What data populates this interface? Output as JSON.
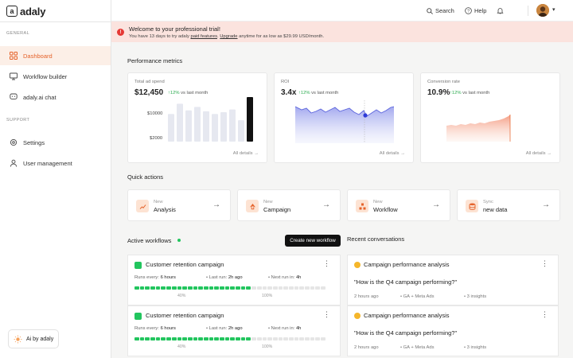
{
  "app": {
    "name": "adaly",
    "logo_letter": "a"
  },
  "sidebar": {
    "general_label": "GENERAL",
    "support_label": "SUPPORT",
    "items": [
      {
        "label": "Dashboard"
      },
      {
        "label": "Workflow builder"
      },
      {
        "label": "adaly.ai chat"
      },
      {
        "label": "Settings"
      },
      {
        "label": "User management"
      }
    ],
    "ai_button": "Ai by adaly"
  },
  "topbar": {
    "search": "Search",
    "help": "Help"
  },
  "banner": {
    "title": "Welcome to your professional trial!",
    "text_before": "You have 13 days to try adaly",
    "link_features": "paid features",
    "text_mid": ".",
    "link_upgrade": "Upgrade",
    "text_after": "anytime for as low as $29.99 USD/month."
  },
  "metrics": {
    "heading": "Performance metrics",
    "cards": [
      {
        "label": "Total ad spend",
        "value": "$12,450",
        "delta": "↑12%",
        "delta_text": "vs last month",
        "y_labels": [
          "$10000",
          "$2000"
        ],
        "link": "All details"
      },
      {
        "label": "ROI",
        "value": "3.4x",
        "delta": "↑12%",
        "delta_text": "vs last month",
        "link": "All details"
      },
      {
        "label": "Conversion rate",
        "value": "10.9%",
        "delta": "↑12%",
        "delta_text": "vs last month",
        "link": "All details"
      }
    ],
    "spend_bars": [
      0.62,
      0.85,
      0.7,
      0.78,
      0.68,
      0.62,
      0.66,
      0.72,
      0.48,
      1.0
    ]
  },
  "quick_actions": {
    "heading": "Quick actions",
    "items": [
      {
        "small": "New",
        "label": "Analysis"
      },
      {
        "small": "New",
        "label": "Campaign"
      },
      {
        "small": "New",
        "label": "Workflow"
      },
      {
        "small": "Sync",
        "label": "new data"
      }
    ]
  },
  "workflows": {
    "heading": "Active workflows",
    "create_button": "Create new workflow",
    "items": [
      {
        "name": "Customer retention campaign",
        "runs_label": "Runs every:",
        "runs": "6 hours",
        "last_label": "Last run:",
        "last": "2h ago",
        "next_label": "Next run in:",
        "next": "4h",
        "p40": "40%",
        "p100": "100%",
        "progress": 0.6
      },
      {
        "name": "Customer retention campaign",
        "runs_label": "Runs every:",
        "runs": "6 hours",
        "last_label": "Last run:",
        "last": "2h ago",
        "next_label": "Next run in:",
        "next": "4h",
        "p40": "40%",
        "p100": "100%",
        "progress": 0.6
      }
    ]
  },
  "conversations": {
    "heading": "Recent conversations",
    "items": [
      {
        "name": "Campaign performance analysis",
        "question": "\"How is the Q4 campaign performing?\"",
        "time": "2 hours ago",
        "sources": "GA + Meta Ads",
        "insights": "3 insights"
      },
      {
        "name": "Campaign performance analysis",
        "question": "\"How is the Q4 campaign performing?\"",
        "time": "2 hours ago",
        "sources": "GA + Meta Ads",
        "insights": "3 insights"
      }
    ]
  },
  "colors": {
    "accent": "#e5622a",
    "green": "#22c55e",
    "banner": "#fbe3de"
  }
}
